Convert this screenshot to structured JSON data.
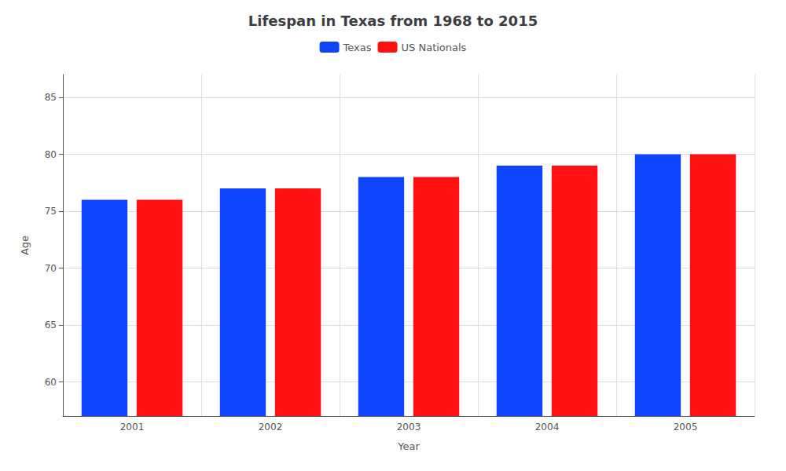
{
  "chart_data": {
    "type": "bar",
    "title": "Lifespan in Texas from 1968 to 2015",
    "xlabel": "Year",
    "ylabel": "Age",
    "categories": [
      2001,
      2002,
      2003,
      2004,
      2005
    ],
    "series": [
      {
        "name": "Texas",
        "color": "#1144ff",
        "values": [
          76,
          77,
          78,
          79,
          80
        ]
      },
      {
        "name": "US Nationals",
        "color": "#ff1111",
        "values": [
          76,
          77,
          78,
          79,
          80
        ]
      }
    ],
    "ylim": [
      57,
      87
    ],
    "yticks": [
      60,
      65,
      70,
      75,
      80,
      85
    ],
    "grid": true,
    "legend": "top"
  }
}
